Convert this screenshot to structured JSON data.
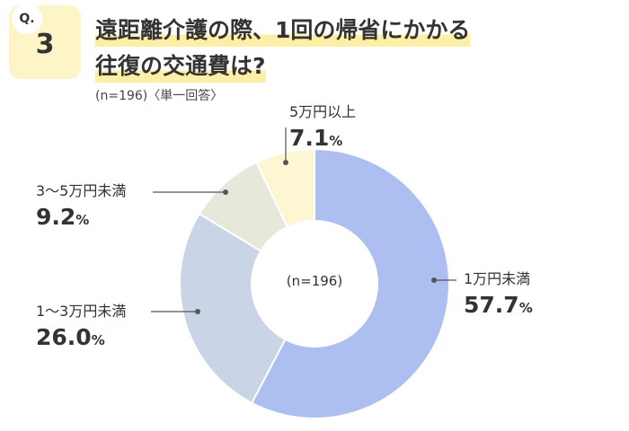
{
  "question": {
    "badge_label": "Q.",
    "number": "3",
    "title_line1": "遠距離介護の際、1回の帰省にかかる",
    "title_line2": "往復の交通費は?",
    "sample_note": "(n=196)〈単一回答〉"
  },
  "chart_data": {
    "type": "pie",
    "center_label": "(n=196)",
    "unit": "%",
    "slices": [
      {
        "label": "1万円未満",
        "value": 57.7,
        "color": "#adbff0"
      },
      {
        "label": "1〜3万円未満",
        "value": 26.0,
        "color": "#c9d4e6"
      },
      {
        "label": "3〜5万円未満",
        "value": 9.2,
        "color": "#e6e8db"
      },
      {
        "label": "5万円以上",
        "value": 7.1,
        "color": "#fdf6d3"
      }
    ]
  }
}
